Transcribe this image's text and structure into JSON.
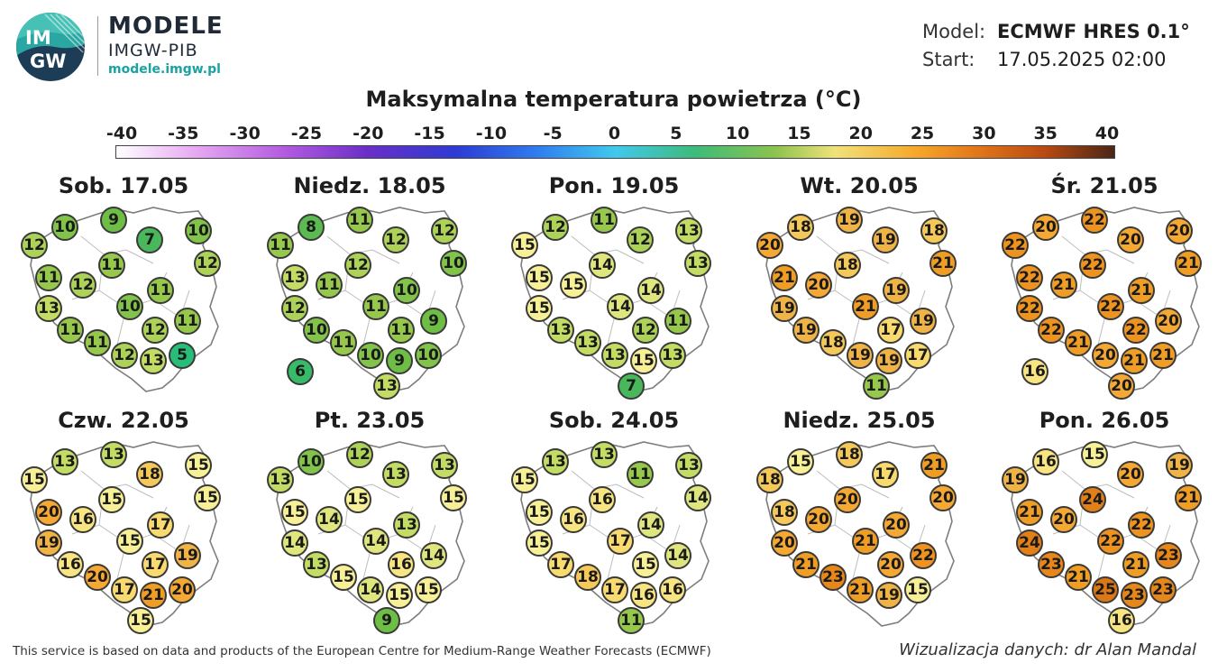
{
  "brand": {
    "logo_text_top": "IM",
    "logo_text_bottom": "GW",
    "title": "MODELE",
    "subtitle": "IMGW-PIB",
    "url": "modele.imgw.pl"
  },
  "meta": {
    "model_label": "Model:",
    "model_value": "ECMWF HRES 0.1°",
    "start_label": "Start:",
    "start_value": "17.05.2025 02:00"
  },
  "title": "Maksymalna temperatura powietrza (°C)",
  "scale": {
    "ticks": [
      "-40",
      "-35",
      "-30",
      "-25",
      "-20",
      "-15",
      "-10",
      "-5",
      "0",
      "5",
      "10",
      "15",
      "20",
      "25",
      "30",
      "35",
      "40"
    ],
    "min": -40,
    "max": 40
  },
  "days": [
    {
      "label": "Sob. 17.05",
      "values": [
        10,
        9,
        12,
        7,
        10,
        11,
        11,
        12,
        12,
        13,
        10,
        11,
        11,
        12,
        11,
        11,
        12,
        13,
        5
      ]
    },
    {
      "label": "Niedz. 18.05",
      "values": [
        8,
        11,
        11,
        12,
        12,
        13,
        12,
        11,
        10,
        12,
        11,
        10,
        10,
        11,
        9,
        11,
        10,
        9,
        10,
        13,
        6
      ]
    },
    {
      "label": "Pon. 19.05",
      "values": [
        12,
        11,
        15,
        12,
        13,
        15,
        14,
        15,
        13,
        15,
        14,
        14,
        13,
        12,
        11,
        13,
        13,
        15,
        13,
        7
      ]
    },
    {
      "label": "Wt. 20.05",
      "values": [
        18,
        19,
        20,
        19,
        18,
        21,
        18,
        20,
        21,
        19,
        21,
        19,
        19,
        17,
        19,
        18,
        19,
        19,
        17,
        11
      ]
    },
    {
      "label": "Śr. 21.05",
      "values": [
        20,
        22,
        22,
        20,
        20,
        22,
        22,
        21,
        21,
        22,
        22,
        21,
        22,
        22,
        20,
        21,
        20,
        21,
        21,
        20,
        16
      ]
    },
    {
      "label": "Czw. 22.05",
      "values": [
        13,
        13,
        15,
        18,
        15,
        20,
        15,
        16,
        15,
        19,
        15,
        17,
        16,
        17,
        19,
        20,
        17,
        21,
        20,
        15
      ]
    },
    {
      "label": "Pt. 23.05",
      "values": [
        10,
        12,
        13,
        13,
        13,
        15,
        15,
        14,
        15,
        14,
        14,
        13,
        13,
        16,
        14,
        15,
        14,
        15,
        15,
        9
      ]
    },
    {
      "label": "Sob. 24.05",
      "values": [
        13,
        13,
        15,
        11,
        13,
        15,
        16,
        16,
        14,
        15,
        17,
        14,
        17,
        15,
        14,
        18,
        17,
        16,
        16,
        11
      ]
    },
    {
      "label": "Niedz. 25.05",
      "values": [
        15,
        18,
        18,
        17,
        21,
        18,
        20,
        20,
        20,
        20,
        21,
        20,
        21,
        20,
        22,
        23,
        21,
        19,
        15
      ]
    },
    {
      "label": "Pon. 26.05",
      "values": [
        16,
        15,
        19,
        20,
        19,
        21,
        24,
        20,
        21,
        24,
        22,
        22,
        23,
        21,
        23,
        21,
        25,
        23,
        23,
        16
      ]
    }
  ],
  "footer": {
    "left": "This service is based on data and products of the European Centre for Medium-Range Weather Forecasts (ECMWF)",
    "right": "Wizualizacja danych: dr Alan Mandal"
  }
}
